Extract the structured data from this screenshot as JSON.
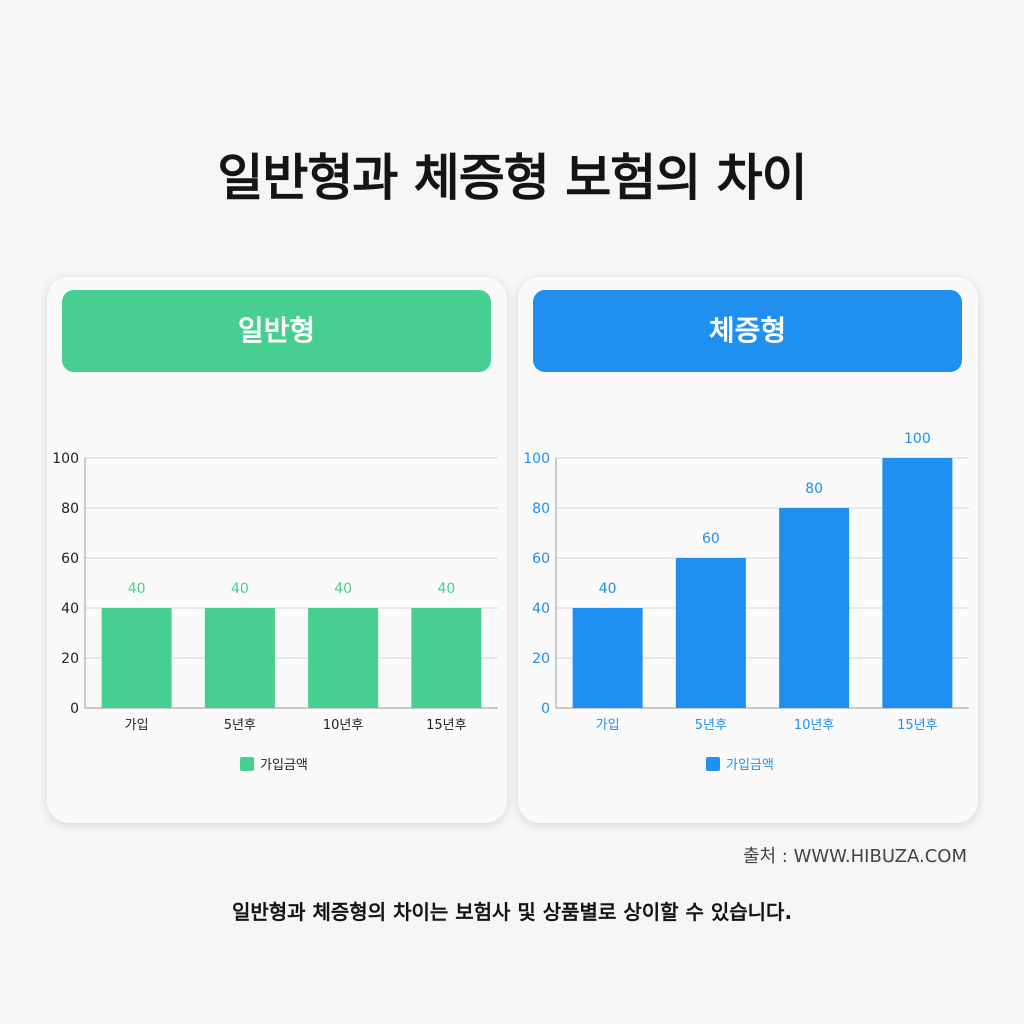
{
  "title": "일반형과 체증형 보험의 차이",
  "source": "출처 : WWW.HIBUZA.COM",
  "footnote": "일반형과 체증형의 차이는 보험사 및 상품별로 상이할 수 있습니다.",
  "chart_data": [
    {
      "type": "bar",
      "title": "일반형",
      "categories": [
        "가입",
        "5년후",
        "10년후",
        "15년후"
      ],
      "series": [
        {
          "name": "가입금액",
          "values": [
            40,
            40,
            40,
            40
          ]
        }
      ],
      "ylim": [
        0,
        100
      ],
      "yticks": [
        0,
        20,
        40,
        60,
        80,
        100
      ],
      "grid": true,
      "legend": "bottom",
      "color": "#46cf91",
      "label_color": "#46cf91",
      "tick_color": "#222222"
    },
    {
      "type": "bar",
      "title": "체증형",
      "categories": [
        "가입",
        "5년후",
        "10년후",
        "15년후"
      ],
      "series": [
        {
          "name": "가입금액",
          "values": [
            40,
            60,
            80,
            100
          ]
        }
      ],
      "ylim": [
        0,
        100
      ],
      "yticks": [
        0,
        20,
        40,
        60,
        80,
        100
      ],
      "grid": true,
      "legend": "bottom",
      "color": "#1f8ff0",
      "label_color": "#1f8ff0",
      "tick_color": "#1f8ff0"
    }
  ]
}
